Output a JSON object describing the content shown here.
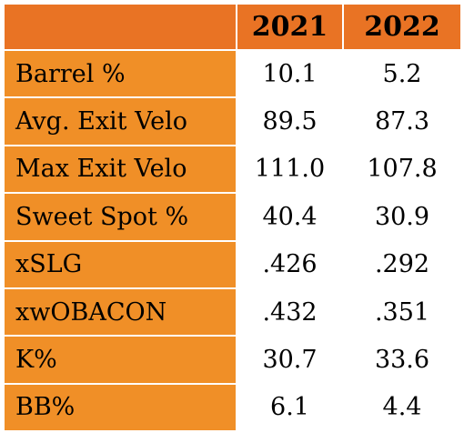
{
  "table": {
    "columns": [
      "",
      "2021",
      "2022"
    ],
    "rows": [
      {
        "label": "Barrel %",
        "v2021": "10.1",
        "v2022": "5.2"
      },
      {
        "label": "Avg. Exit Velo",
        "v2021": "89.5",
        "v2022": "87.3"
      },
      {
        "label": "Max Exit Velo",
        "v2021": "111.0",
        "v2022": "107.8"
      },
      {
        "label": "Sweet Spot %",
        "v2021": "40.4",
        "v2022": "30.9"
      },
      {
        "label": "xSLG",
        "v2021": ".426",
        "v2022": ".292"
      },
      {
        "label": "xwOBACON",
        "v2021": ".432",
        "v2022": ".351"
      },
      {
        "label": "K%",
        "v2021": "30.7",
        "v2022": "33.6"
      },
      {
        "label": "BB%",
        "v2021": "6.1",
        "v2022": "4.4"
      }
    ]
  },
  "colors": {
    "header_bg": "#e97324",
    "label_bg": "#f08f27",
    "value_bg": "#ffffff",
    "text": "#000000"
  }
}
